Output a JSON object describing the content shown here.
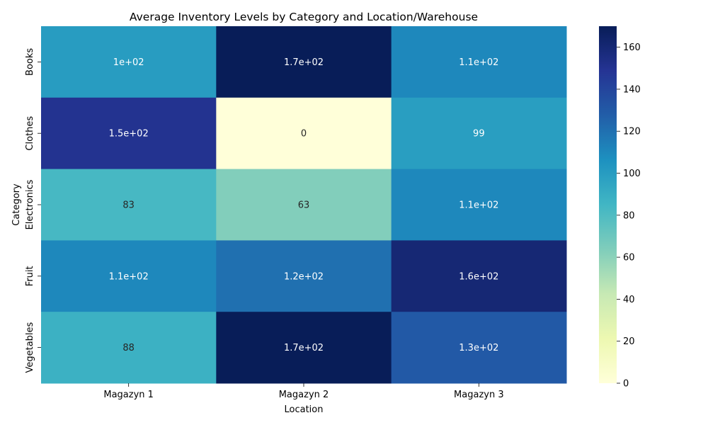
{
  "chart_data": {
    "type": "heatmap",
    "title": "Average Inventory Levels by Category and Location/Warehouse",
    "xlabel": "Location",
    "ylabel": "Category",
    "x_categories": [
      "Magazyn 1",
      "Magazyn 2",
      "Magazyn 3"
    ],
    "y_categories": [
      "Books",
      "Clothes",
      "Electronics",
      "Fruit",
      "Vegetables"
    ],
    "values": [
      [
        100,
        170,
        110
      ],
      [
        150,
        0,
        99
      ],
      [
        83,
        63,
        110
      ],
      [
        110,
        120,
        160
      ],
      [
        88,
        170,
        130
      ]
    ],
    "annotations": [
      [
        "1e+02",
        "1.7e+02",
        "1.1e+02"
      ],
      [
        "1.5e+02",
        "0",
        "99"
      ],
      [
        "83",
        "63",
        "1.1e+02"
      ],
      [
        "1.1e+02",
        "1.2e+02",
        "1.6e+02"
      ],
      [
        "88",
        "1.7e+02",
        "1.3e+02"
      ]
    ],
    "colorbar": {
      "colormap": "YlGnBu",
      "range": [
        0,
        170
      ],
      "ticks": [
        0,
        20,
        40,
        60,
        80,
        100,
        120,
        140,
        160
      ]
    }
  }
}
